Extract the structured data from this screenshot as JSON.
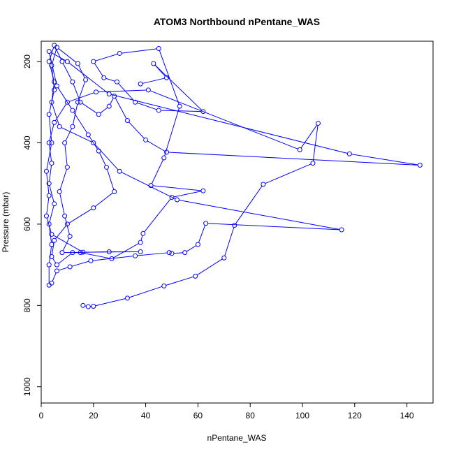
{
  "chart_data": {
    "type": "scatter",
    "title": "ATOM3 Northbound nPentane_WAS",
    "xlabel": "nPentane_WAS",
    "ylabel": "Pressure (mbar)",
    "xlim": [
      0,
      150
    ],
    "ylim": [
      1040,
      150
    ],
    "y_axis_reversed": true,
    "x_ticks": [
      0,
      20,
      40,
      60,
      80,
      100,
      120,
      140
    ],
    "y_ticks": [
      200,
      400,
      600,
      800,
      1000
    ],
    "grid": false,
    "legend": "none",
    "color": "#0000ff",
    "marker": "open-circle",
    "connected": true,
    "series": [
      {
        "values": [
          [
            16,
            800
          ],
          [
            18,
            803
          ],
          [
            20,
            802
          ],
          [
            33,
            782
          ],
          [
            47,
            752
          ],
          [
            59,
            728
          ],
          [
            70,
            683
          ],
          [
            74,
            603
          ],
          [
            85,
            502
          ],
          [
            104,
            450
          ],
          [
            106,
            352
          ],
          [
            99,
            417
          ],
          [
            41,
            270
          ],
          [
            21,
            275
          ],
          [
            10,
            300
          ],
          [
            5,
            350
          ],
          [
            3,
            400
          ],
          [
            4,
            450
          ],
          [
            3,
            500
          ],
          [
            5,
            550
          ],
          [
            3,
            600
          ],
          [
            4,
            650
          ],
          [
            3,
            700
          ],
          [
            3,
            750
          ],
          [
            4,
            745
          ],
          [
            6,
            715
          ],
          [
            11,
            705
          ],
          [
            19,
            690
          ],
          [
            36,
            678
          ],
          [
            49,
            670
          ],
          [
            50,
            672
          ],
          [
            55,
            670
          ],
          [
            60,
            650
          ],
          [
            63,
            598
          ],
          [
            115,
            614
          ],
          [
            52,
            540
          ],
          [
            30,
            470
          ],
          [
            20,
            400
          ],
          [
            7,
            360
          ],
          [
            4,
            300
          ],
          [
            5,
            250
          ],
          [
            3,
            200
          ],
          [
            5,
            160
          ],
          [
            8,
            200
          ],
          [
            12,
            250
          ],
          [
            15,
            300
          ],
          [
            22,
            330
          ],
          [
            26,
            310
          ],
          [
            28,
            285
          ],
          [
            33,
            345
          ],
          [
            40,
            393
          ],
          [
            48,
            423
          ],
          [
            145,
            455
          ],
          [
            118,
            427
          ],
          [
            26,
            280
          ],
          [
            10,
            200
          ],
          [
            3,
            175
          ],
          [
            6,
            260
          ],
          [
            12,
            320
          ],
          [
            18,
            380
          ],
          [
            22,
            420
          ],
          [
            25,
            460
          ],
          [
            28,
            520
          ],
          [
            20,
            560
          ],
          [
            10,
            600
          ],
          [
            5,
            640
          ],
          [
            4,
            680
          ],
          [
            6,
            700
          ],
          [
            12,
            670
          ],
          [
            26,
            668
          ],
          [
            38,
            668
          ],
          [
            16,
            669
          ],
          [
            4,
            625
          ],
          [
            2,
            580
          ],
          [
            3,
            530
          ],
          [
            2,
            470
          ],
          [
            4,
            400
          ],
          [
            3,
            330
          ],
          [
            5,
            270
          ],
          [
            4,
            210
          ],
          [
            6,
            165
          ],
          [
            14,
            205
          ],
          [
            17,
            245
          ],
          [
            14,
            300
          ],
          [
            12,
            360
          ],
          [
            9,
            400
          ],
          [
            10,
            460
          ],
          [
            7,
            520
          ],
          [
            9,
            580
          ],
          [
            11,
            630
          ],
          [
            8,
            670
          ],
          [
            15,
            670
          ],
          [
            27,
            685
          ],
          [
            38,
            645
          ],
          [
            39,
            623
          ],
          [
            50,
            534
          ],
          [
            62,
            518
          ],
          [
            42,
            505
          ],
          [
            47,
            437
          ],
          [
            53,
            310
          ],
          [
            45,
            168
          ],
          [
            30,
            180
          ],
          [
            20,
            200
          ],
          [
            24,
            240
          ],
          [
            29,
            250
          ],
          [
            36,
            300
          ],
          [
            45,
            320
          ],
          [
            62,
            323
          ],
          [
            43,
            205
          ],
          [
            48,
            240
          ],
          [
            38,
            255
          ]
        ]
      }
    ]
  }
}
